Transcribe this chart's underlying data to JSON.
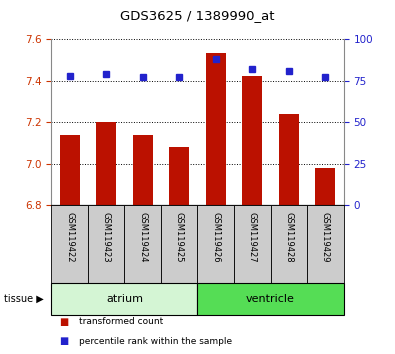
{
  "title": "GDS3625 / 1389990_at",
  "samples": [
    "GSM119422",
    "GSM119423",
    "GSM119424",
    "GSM119425",
    "GSM119426",
    "GSM119427",
    "GSM119428",
    "GSM119429"
  ],
  "red_values": [
    7.14,
    7.2,
    7.14,
    7.08,
    7.53,
    7.42,
    7.24,
    6.98
  ],
  "blue_values": [
    78,
    79,
    77,
    77,
    88,
    82,
    81,
    77
  ],
  "ylim_left": [
    6.8,
    7.6
  ],
  "ylim_right": [
    0,
    100
  ],
  "yticks_left": [
    6.8,
    7.0,
    7.2,
    7.4,
    7.6
  ],
  "yticks_right": [
    0,
    25,
    50,
    75,
    100
  ],
  "tissue_groups": [
    {
      "label": "atrium",
      "start": 0,
      "end": 4,
      "color": "#d4f5d4"
    },
    {
      "label": "ventricle",
      "start": 4,
      "end": 8,
      "color": "#55dd55"
    }
  ],
  "bar_color": "#bb1100",
  "dot_color": "#2222cc",
  "bar_bottom": 6.8,
  "bar_width": 0.55,
  "grid_color": "#000000",
  "background_color": "#ffffff",
  "plot_bg": "#ffffff",
  "legend_items": [
    {
      "color": "#bb1100",
      "label": "transformed count"
    },
    {
      "color": "#2222cc",
      "label": "percentile rank within the sample"
    }
  ],
  "left_axis_color": "#cc3300",
  "right_axis_color": "#2222cc",
  "sample_box_color": "#cccccc",
  "tissue_label_fontsize": 8,
  "bar_label_fontsize": 6
}
